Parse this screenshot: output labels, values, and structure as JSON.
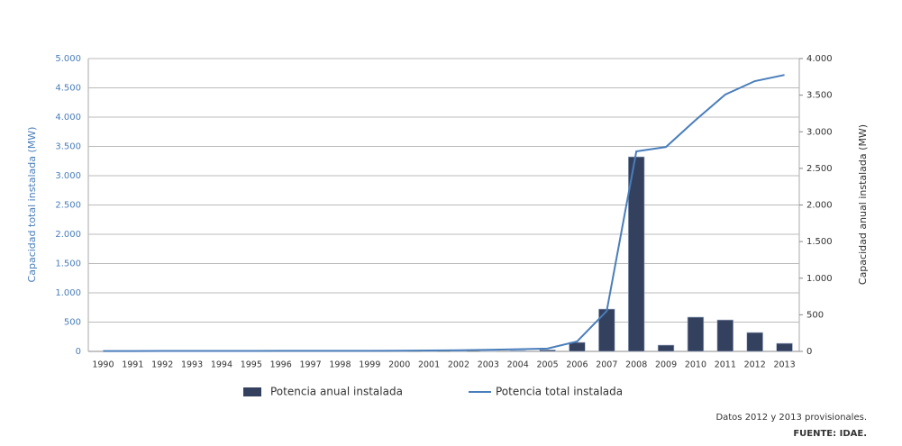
{
  "chart_data": {
    "type": "combo",
    "categories": [
      "1990",
      "1991",
      "1992",
      "1993",
      "1994",
      "1995",
      "1996",
      "1997",
      "1998",
      "1999",
      "2000",
      "2001",
      "2002",
      "2003",
      "2004",
      "2005",
      "2006",
      "2007",
      "2008",
      "2009",
      "2010",
      "2011",
      "2012",
      "2013"
    ],
    "series": [
      {
        "name": "Potencia anual instalada",
        "type": "bar",
        "axis": "y2",
        "color": "#34415e",
        "values": [
          0,
          0,
          0,
          0,
          0,
          0,
          0,
          0,
          0,
          0,
          1,
          2,
          4,
          6,
          10,
          20,
          123,
          578,
          2658,
          86,
          468,
          430,
          258,
          110
        ]
      },
      {
        "name": "Potencia total instalada",
        "type": "line",
        "axis": "y",
        "color": "#4a7ebb",
        "values": [
          5,
          6,
          7,
          7,
          8,
          8,
          9,
          9,
          10,
          10,
          12,
          16,
          20,
          27,
          37,
          48,
          170,
          690,
          3415,
          3490,
          3950,
          4385,
          4615,
          4720
        ]
      }
    ],
    "ylabel": "Capacidad total instalada (MW)",
    "y2label": "Capacidad anual instalada (MW)",
    "ylim": [
      0,
      5000
    ],
    "yticks": [
      0,
      500,
      {
        "value": 1000,
        "label": "1.000"
      },
      {
        "value": 1500,
        "label": "1.500"
      },
      {
        "value": 2000,
        "label": "2.000"
      },
      {
        "value": 2500,
        "label": "2.500"
      },
      {
        "value": 3000,
        "label": "3.000"
      },
      {
        "value": 3500,
        "label": "3.500"
      },
      {
        "value": 4000,
        "label": "4.000"
      },
      {
        "value": 4500,
        "label": "4.500"
      },
      {
        "value": 5000,
        "label": "5.000"
      }
    ],
    "y2lim": [
      0,
      4000
    ],
    "y2ticks": [
      0,
      500,
      {
        "value": 1000,
        "label": "1.000"
      },
      {
        "value": 1500,
        "label": "1.500"
      },
      {
        "value": 2000,
        "label": "2.000"
      },
      {
        "value": 2500,
        "label": "2.500"
      },
      {
        "value": 3000,
        "label": "3.000"
      },
      {
        "value": 3500,
        "label": "3.500"
      },
      {
        "value": 4000,
        "label": "4.000"
      }
    ],
    "grid": true,
    "annotations": [
      "Datos 2012 y 2013 provisionales.",
      "FUENTE: IDAE."
    ]
  }
}
